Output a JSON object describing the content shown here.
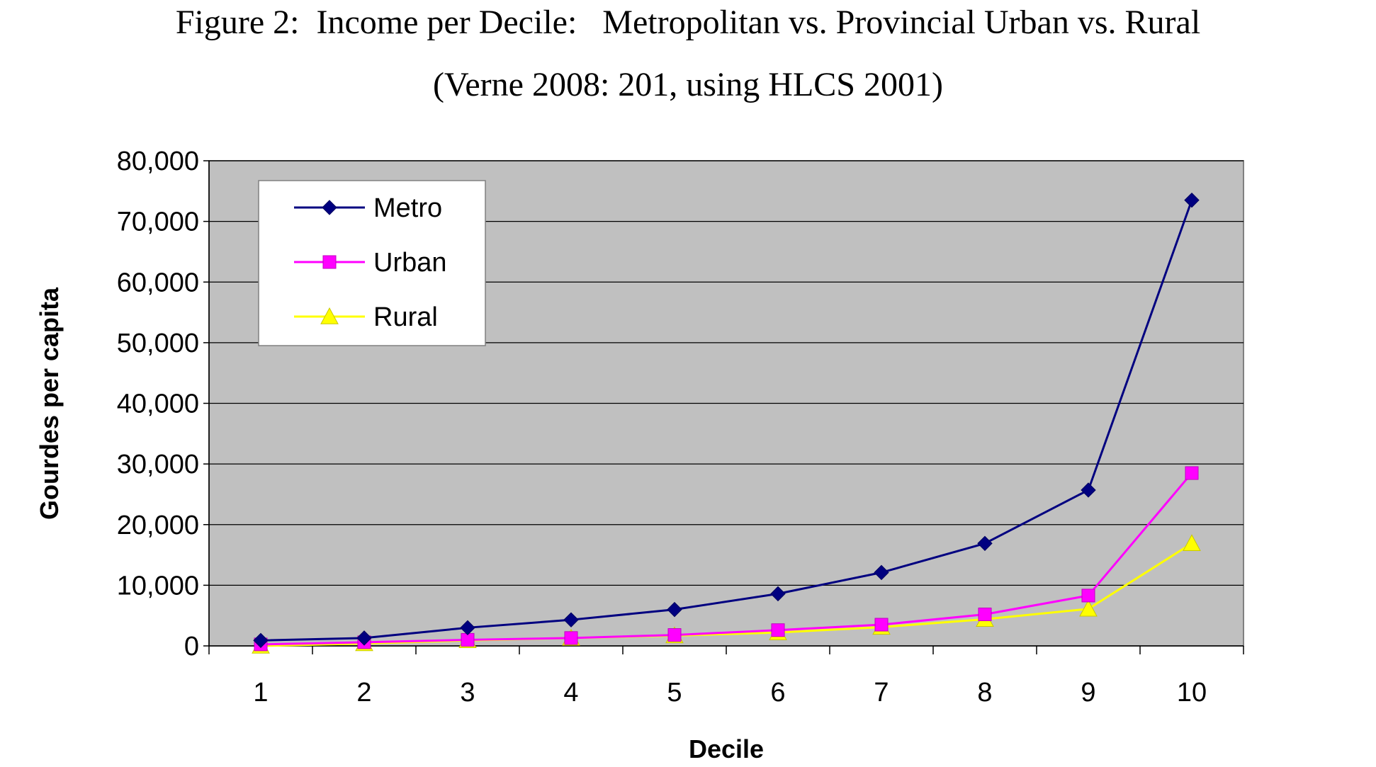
{
  "figure": {
    "title": "Figure 2:  Income per Decile:   Metropolitan vs. Provincial Urban vs. Rural",
    "subtitle": "(Verne 2008: 201, using HLCS 2001)"
  },
  "chart_data": {
    "type": "line",
    "title": "Figure 2:  Income per Decile:   Metropolitan vs. Provincial Urban vs. Rural",
    "subtitle": "(Verne 2008: 201, using HLCS 2001)",
    "xlabel": "Decile",
    "ylabel": "Gourdes per capita",
    "categories": [
      "1",
      "2",
      "3",
      "4",
      "5",
      "6",
      "7",
      "8",
      "9",
      "10"
    ],
    "ylim": [
      0,
      80000
    ],
    "yticks": [
      0,
      10000,
      20000,
      30000,
      40000,
      50000,
      60000,
      70000,
      80000
    ],
    "ytick_labels": [
      "0",
      "10,000",
      "20,000",
      "30,000",
      "40,000",
      "50,000",
      "60,000",
      "70,000",
      "80,000"
    ],
    "grid": true,
    "legend_position": "top-left",
    "plot_background": "#c0c0c0",
    "series": [
      {
        "name": "Metro",
        "marker": "diamond",
        "color": "#000080",
        "values": [
          900,
          1300,
          3000,
          4300,
          6000,
          8600,
          12100,
          16900,
          25700,
          73500
        ]
      },
      {
        "name": "Urban",
        "marker": "square",
        "color": "#ff00ff",
        "values": [
          250,
          600,
          1000,
          1300,
          1800,
          2600,
          3500,
          5200,
          8300,
          28500
        ]
      },
      {
        "name": "Rural",
        "marker": "triangle",
        "color": "#ffff00",
        "values": [
          0,
          400,
          900,
          1300,
          1700,
          2200,
          3100,
          4400,
          6100,
          16900
        ]
      }
    ]
  }
}
